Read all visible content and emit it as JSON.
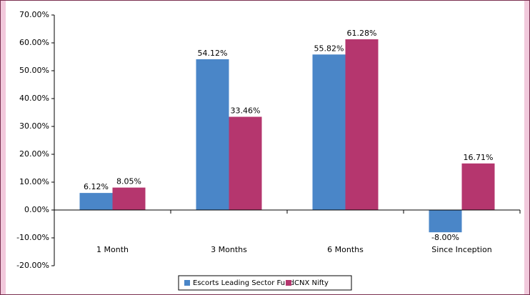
{
  "chart_data": {
    "type": "bar",
    "categories": [
      "1 Month",
      "3 Months",
      "6 Months",
      "Since Inception"
    ],
    "series": [
      {
        "name": "Escorts Leading Sector Fund",
        "color": "#4a86c8",
        "values": [
          6.12,
          54.12,
          55.82,
          -8.0
        ],
        "value_labels": [
          "6.12%",
          "54.12%",
          "55.82%",
          "-8.00%"
        ]
      },
      {
        "name": "CNX Nifty",
        "color": "#b5366e",
        "values": [
          8.05,
          33.46,
          61.28,
          16.71
        ],
        "value_labels": [
          "8.05%",
          "33.46%",
          "61.28%",
          "16.71%"
        ]
      }
    ],
    "ylim": [
      -20,
      70
    ],
    "yticks": [
      {
        "value": -20,
        "label": "-20.00%"
      },
      {
        "value": -10,
        "label": "-10.00%"
      },
      {
        "value": 0,
        "label": "0.00%"
      },
      {
        "value": 10,
        "label": "10.00%"
      },
      {
        "value": 20,
        "label": "20.00%"
      },
      {
        "value": 30,
        "label": "30.00%"
      },
      {
        "value": 40,
        "label": "40.00%"
      },
      {
        "value": 50,
        "label": "50.00%"
      },
      {
        "value": 60,
        "label": "60.00%"
      },
      {
        "value": 70,
        "label": "70.00%"
      }
    ],
    "grid": false,
    "legend": "bottom"
  }
}
